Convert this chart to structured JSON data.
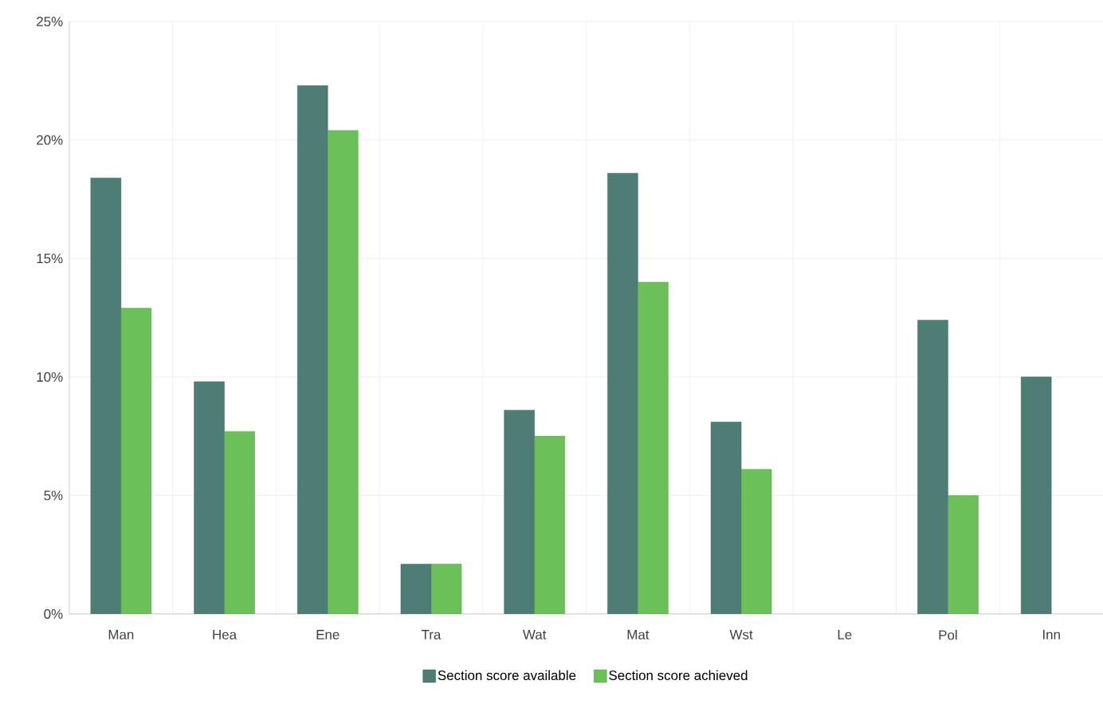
{
  "chart_data": {
    "type": "bar",
    "categories": [
      "Man",
      "Hea",
      "Ene",
      "Tra",
      "Wat",
      "Mat",
      "Wst",
      "Le",
      "Pol",
      "Inn"
    ],
    "series": [
      {
        "name": "Section score available",
        "color": "#4d7d75",
        "values": [
          18.4,
          9.8,
          22.3,
          2.1,
          8.6,
          18.6,
          8.1,
          null,
          12.4,
          10.0
        ]
      },
      {
        "name": "Section score achieved",
        "color": "#6cc05a",
        "values": [
          12.9,
          7.7,
          20.4,
          2.1,
          7.5,
          14.0,
          6.1,
          null,
          5.0,
          null
        ]
      }
    ],
    "ylim": [
      0,
      25
    ],
    "yticks": [
      {
        "value": 0,
        "label": "0%"
      },
      {
        "value": 5,
        "label": "5%"
      },
      {
        "value": 10,
        "label": "10%"
      },
      {
        "value": 15,
        "label": "15%"
      },
      {
        "value": 20,
        "label": "20%"
      },
      {
        "value": 25,
        "label": "25%"
      }
    ],
    "grid": true,
    "legend": "bottom"
  }
}
